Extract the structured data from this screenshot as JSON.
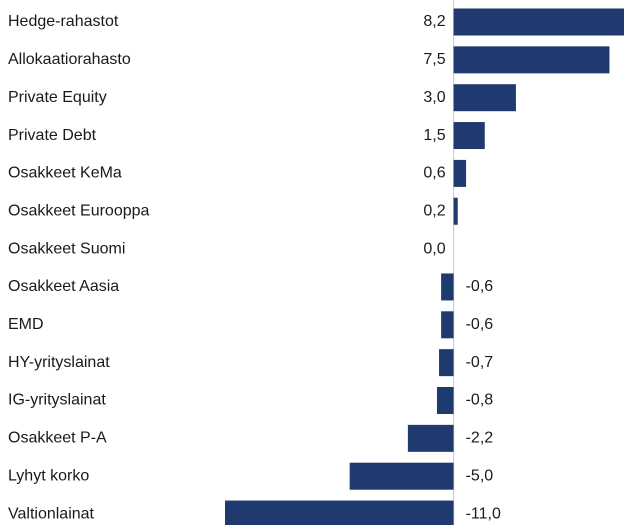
{
  "chart_data": {
    "type": "barh",
    "categories": [
      "Hedge-rahastot",
      "Allokaatiorahasto",
      "Private Equity",
      "Private Debt",
      "Osakkeet KeMa",
      "Osakkeet Eurooppa",
      "Osakkeet Suomi",
      "Osakkeet Aasia",
      "EMD",
      "HY-yrityslainat",
      "IG-yrityslainat",
      "Osakkeet P-A",
      "Lyhyt korko",
      "Valtionlainat"
    ],
    "values": [
      8.2,
      7.5,
      3.0,
      1.5,
      0.6,
      0.2,
      0.0,
      -0.6,
      -0.6,
      -0.7,
      -0.8,
      -2.2,
      -5.0,
      -11.0
    ],
    "value_labels": [
      "8,2",
      "7,5",
      "3,0",
      "1,5",
      "0,6",
      "0,2",
      "0,0",
      "-0,6",
      "-0,6",
      "-0,7",
      "-0,8",
      "-2,2",
      "-5,0",
      "-11,0"
    ],
    "color": "#1f3a6e",
    "xlim": [
      -11.0,
      8.2
    ]
  }
}
